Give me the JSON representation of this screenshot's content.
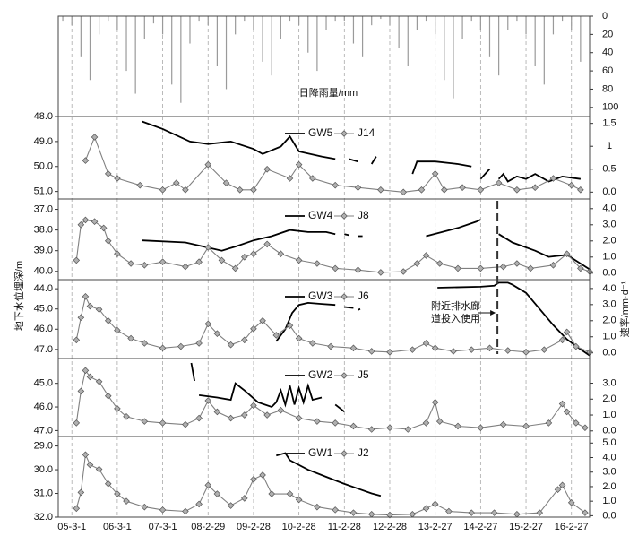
{
  "chart_data": [
    {
      "type": "bar",
      "ylabel": "日降雨量/mm",
      "color": "#9a9a9a",
      "xlim": [
        -0.3,
        11.4
      ],
      "ylim": [
        0,
        110
      ],
      "yticks": [
        0,
        20,
        40,
        60,
        80,
        100
      ],
      "x": [
        -0.2,
        0,
        0.2,
        0.4,
        0.6,
        0.8,
        1,
        1.2,
        1.4,
        1.6,
        1.8,
        2,
        2.2,
        2.4,
        2.6,
        2.8,
        3,
        3.2,
        3.4,
        3.6,
        3.8,
        4,
        4.2,
        4.4,
        4.6,
        4.8,
        5,
        5.2,
        5.4,
        5.6,
        5.8,
        6,
        6.2,
        6.4,
        6.6,
        6.8,
        7,
        7.2,
        7.4,
        7.6,
        7.8,
        8,
        8.2,
        8.4,
        8.6,
        8.8,
        9,
        9.2,
        9.4,
        9.6,
        9.8,
        10,
        10.2,
        10.4,
        10.6,
        10.8,
        11,
        11.2
      ],
      "values": [
        5,
        10,
        45,
        70,
        20,
        5,
        15,
        60,
        85,
        25,
        8,
        20,
        75,
        95,
        30,
        5,
        10,
        55,
        80,
        20,
        5,
        15,
        50,
        65,
        25,
        5,
        10,
        40,
        60,
        15,
        5,
        5,
        30,
        45,
        10,
        3,
        10,
        35,
        55,
        15,
        5,
        20,
        70,
        90,
        25,
        5,
        15,
        45,
        65,
        15,
        5,
        20,
        55,
        75,
        20,
        5,
        15,
        50
      ]
    },
    {
      "type": "line",
      "xlim": [
        -0.3,
        11.4
      ],
      "ylim": [
        48,
        51.3
      ],
      "y2lim": [
        -0.15,
        1.65
      ],
      "yticks": [
        {
          "value": 48,
          "label": "48.0"
        },
        {
          "value": 49,
          "label": "49.0"
        },
        {
          "value": 50,
          "label": "50.0"
        },
        {
          "value": 51,
          "label": "51.0"
        }
      ],
      "y2ticks": [
        {
          "value": 0,
          "label": "0.0"
        },
        0.5,
        1,
        1.5
      ],
      "series": [
        {
          "name": "GW5",
          "color": "#000000",
          "axis": "y",
          "x": [
            1.55,
            2.0,
            2.6,
            3.0,
            3.5,
            4.0,
            4.2,
            4.6,
            4.8,
            5.0,
            5.5,
            5.8,
            5.9,
            6.1,
            6.3,
            6.4,
            6.6,
            6.7,
            7.4,
            7.5,
            7.6,
            8.0,
            8.5,
            8.8,
            8.9,
            9.0,
            9.2,
            9.25,
            9.4,
            9.5,
            9.6,
            9.8,
            10.0,
            10.2,
            10.5,
            10.8,
            11.2
          ],
          "values": [
            48.2,
            48.5,
            49.0,
            49.1,
            49.0,
            49.3,
            49.5,
            49.2,
            48.8,
            49.4,
            49.6,
            49.7,
            null,
            49.7,
            49.8,
            null,
            49.9,
            49.6,
            null,
            50.3,
            49.8,
            49.8,
            49.9,
            50.0,
            null,
            50.5,
            50.1,
            null,
            50.5,
            50.3,
            50.6,
            50.4,
            50.5,
            50.3,
            50.6,
            50.4,
            50.5
          ]
        },
        {
          "name": "J14",
          "color": "#808080",
          "axis": "y2",
          "x": [
            0.3,
            0.5,
            0.8,
            1.0,
            1.5,
            2.0,
            2.3,
            2.5,
            3.0,
            3.4,
            3.7,
            4.0,
            4.3,
            4.8,
            5.0,
            5.3,
            5.8,
            6.3,
            6.8,
            7.3,
            7.7,
            8.0,
            8.2,
            8.6,
            9.0,
            9.4,
            9.8,
            10.2,
            10.6,
            11.0,
            11.2
          ],
          "values": [
            0.69,
            1.2,
            0.4,
            0.3,
            0.15,
            0.05,
            0.2,
            0.05,
            0.6,
            0.2,
            0.05,
            0.05,
            0.5,
            0.3,
            0.6,
            0.3,
            0.15,
            0.1,
            0.05,
            0,
            0.05,
            0.4,
            0.05,
            0.1,
            0.05,
            0.2,
            0.05,
            0.1,
            0.3,
            0.15,
            0.05
          ]
        }
      ]
    },
    {
      "type": "line",
      "xlim": [
        -0.3,
        11.4
      ],
      "ylim": [
        36.5,
        40.4
      ],
      "y2lim": [
        -0.4,
        4.6
      ],
      "yticks": [
        {
          "value": 37,
          "label": "37.0"
        },
        {
          "value": 38,
          "label": "38.0"
        },
        {
          "value": 39,
          "label": "39.0"
        },
        {
          "value": 40,
          "label": "40.0"
        }
      ],
      "y2ticks": [
        {
          "value": 0,
          "label": "0.0"
        },
        {
          "value": 1,
          "label": "1.0"
        },
        {
          "value": 2,
          "label": "2.0"
        },
        {
          "value": 3,
          "label": "3.0"
        },
        {
          "value": 4,
          "label": "4.0"
        }
      ],
      "series": [
        {
          "name": "GW4",
          "color": "#000000",
          "axis": "y",
          "x": [
            1.55,
            2.5,
            3.0,
            3.3,
            3.6,
            4.0,
            4.4,
            4.8,
            5.2,
            5.6,
            5.8,
            5.9,
            6.0,
            6.1,
            6.2,
            6.3,
            6.4,
            7.4,
            7.8,
            8.5,
            8.9,
            9.0,
            9.3,
            9.4,
            9.7,
            10.2,
            10.5,
            10.9,
            11.4
          ],
          "values": [
            38.5,
            38.6,
            38.85,
            39.0,
            38.8,
            38.5,
            38.3,
            38.0,
            38.1,
            38.1,
            38.2,
            null,
            38.2,
            38.25,
            null,
            38.3,
            38.3,
            null,
            38.3,
            37.9,
            37.6,
            37.5,
            null,
            38.2,
            38.6,
            39.0,
            39.3,
            39.2,
            39.9
          ]
        },
        {
          "name": "J8",
          "color": "#808080",
          "axis": "y2",
          "x": [
            0.1,
            0.2,
            0.3,
            0.5,
            0.7,
            0.8,
            1.0,
            1.3,
            1.6,
            2.0,
            2.5,
            2.8,
            3.0,
            3.3,
            3.6,
            3.8,
            4.0,
            4.3,
            4.6,
            5.0,
            5.4,
            5.8,
            6.3,
            6.8,
            7.3,
            7.6,
            7.8,
            8.1,
            8.5,
            9.0,
            9.5,
            9.8,
            10.1,
            10.6,
            10.9,
            11.2,
            11.4
          ],
          "values": [
            0.8,
            3.0,
            3.3,
            3.2,
            2.8,
            2.0,
            1.2,
            0.6,
            0.5,
            0.7,
            0.4,
            0.7,
            1.6,
            0.8,
            0.3,
            1.0,
            1.2,
            1.8,
            1.2,
            0.8,
            0.6,
            0.3,
            0.2,
            0.05,
            0.1,
            0.6,
            1.1,
            0.6,
            0.3,
            0.3,
            0.4,
            0.6,
            0.3,
            0.5,
            1.2,
            0.3,
            0.1
          ]
        }
      ]
    },
    {
      "type": "line",
      "xlim": [
        -0.3,
        11.4
      ],
      "ylim": [
        43.55,
        47.45
      ],
      "y2lim": [
        -0.35,
        4.55
      ],
      "ylabel": "地下水位埋深/m",
      "y2label": "速率/mm·d⁻¹",
      "annotation": {
        "text": [
          "附近排水廊",
          "道投入使用"
        ],
        "x": 9.37
      },
      "yticks": [
        {
          "value": 44,
          "label": "44.0"
        },
        {
          "value": 45,
          "label": "45.0"
        },
        {
          "value": 46,
          "label": "46.0"
        },
        {
          "value": 47,
          "label": "47.0"
        }
      ],
      "y2ticks": [
        {
          "value": 0,
          "label": "0.0"
        },
        {
          "value": 1,
          "label": "1.0"
        },
        {
          "value": 2,
          "label": "2.0"
        },
        {
          "value": 3,
          "label": "3.0"
        },
        {
          "value": 4,
          "label": "4.0"
        }
      ],
      "series": [
        {
          "name": "GW3",
          "color": "#000000",
          "axis": "y",
          "x": [
            4.5,
            4.7,
            4.85,
            5.0,
            5.2,
            5.5,
            5.8,
            5.9,
            6.0,
            6.2,
            6.25,
            6.3,
            6.35,
            7.5,
            8.05,
            9.0,
            9.3,
            9.4,
            9.6,
            9.7,
            10.0,
            10.3,
            10.6,
            10.9,
            11.2,
            11.4
          ],
          "values": [
            46.6,
            46.0,
            45.2,
            44.8,
            44.7,
            44.75,
            44.8,
            null,
            44.9,
            44.95,
            null,
            45.05,
            45.0,
            null,
            43.95,
            43.9,
            43.85,
            43.7,
            43.7,
            43.8,
            44.2,
            45.0,
            45.8,
            46.5,
            47.0,
            47.3
          ]
        },
        {
          "name": "J6",
          "color": "#808080",
          "axis": "y2",
          "x": [
            0.1,
            0.2,
            0.3,
            0.4,
            0.6,
            0.8,
            1.0,
            1.3,
            1.6,
            2.0,
            2.4,
            2.8,
            3.0,
            3.2,
            3.5,
            3.8,
            4.0,
            4.2,
            4.5,
            4.8,
            5.0,
            5.3,
            5.7,
            6.2,
            6.6,
            7.0,
            7.5,
            7.8,
            8.0,
            8.4,
            8.8,
            9.2,
            9.6,
            10.0,
            10.4,
            10.8,
            10.9,
            11.1,
            11.4
          ],
          "values": [
            0.8,
            2.2,
            3.5,
            2.9,
            2.7,
            2.0,
            1.4,
            0.9,
            0.6,
            0.3,
            0.4,
            0.6,
            1.8,
            1.2,
            0.5,
            0.8,
            1.5,
            2.0,
            1.1,
            1.7,
            0.9,
            0.6,
            0.4,
            0.3,
            0.1,
            0.05,
            0.2,
            0.6,
            0.3,
            0.1,
            0.2,
            0.3,
            0.15,
            0.05,
            0.2,
            0.8,
            1.3,
            0.4,
            0.05
          ]
        }
      ]
    },
    {
      "type": "line",
      "xlim": [
        -0.3,
        11.4
      ],
      "ylim": [
        43.95,
        47.25
      ],
      "y2lim": [
        -0.35,
        4.55
      ],
      "yticks": [
        {
          "value": 45,
          "label": "45.0"
        },
        {
          "value": 46,
          "label": "46.0"
        },
        {
          "value": 47,
          "label": "47.0"
        }
      ],
      "y2ticks": [
        {
          "value": 0,
          "label": "0.0"
        },
        {
          "value": 1,
          "label": "1.0"
        },
        {
          "value": 2,
          "label": "2.0"
        },
        {
          "value": 3,
          "label": "3.0"
        }
      ],
      "series": [
        {
          "name": "GW2",
          "color": "#000000",
          "axis": "y",
          "x": [
            2.63,
            2.7,
            2.75,
            2.8,
            3.2,
            3.5,
            3.6,
            3.8,
            4.1,
            4.4,
            4.5,
            4.6,
            4.7,
            4.8,
            4.9,
            5.0,
            5.1,
            5.2,
            5.3,
            5.5,
            5.6,
            5.8,
            6.0
          ],
          "values": [
            44.14,
            44.9,
            null,
            45.5,
            45.6,
            45.7,
            45.0,
            45.3,
            45.8,
            46.0,
            45.8,
            45.3,
            45.9,
            45.1,
            45.9,
            45.2,
            45.8,
            45.1,
            45.7,
            45.6,
            null,
            45.9,
            46.2
          ]
        },
        {
          "name": "J5",
          "color": "#808080",
          "axis": "y2",
          "x": [
            0.1,
            0.2,
            0.3,
            0.4,
            0.6,
            0.8,
            1.0,
            1.2,
            1.6,
            2.0,
            2.5,
            2.8,
            3.0,
            3.2,
            3.5,
            3.8,
            4.0,
            4.3,
            4.6,
            5.0,
            5.4,
            5.8,
            6.2,
            6.6,
            7.0,
            7.4,
            7.8,
            8.0,
            8.1,
            8.5,
            9.0,
            9.5,
            10.0,
            10.5,
            10.8,
            10.9,
            11.1,
            11.3
          ],
          "values": [
            0.5,
            2.5,
            3.8,
            3.4,
            3.1,
            2.2,
            1.4,
            0.9,
            0.6,
            0.5,
            0.4,
            0.8,
            1.9,
            1.2,
            0.8,
            1.0,
            1.6,
            1.0,
            1.3,
            0.8,
            0.6,
            0.5,
            0.3,
            0.1,
            0.2,
            0.1,
            0.5,
            1.8,
            0.6,
            0.3,
            0.2,
            0.4,
            0.3,
            0.5,
            1.7,
            1.2,
            0.5,
            0.2
          ]
        }
      ]
    },
    {
      "type": "line",
      "xlim": [
        -0.3,
        11.4
      ],
      "ylim": [
        28.6,
        32
      ],
      "y2lim": [
        -0.1,
        5.45
      ],
      "xticks": [
        {
          "value": 0,
          "label": "05-3-1"
        },
        {
          "value": 1,
          "label": "06-3-1"
        },
        {
          "value": 2,
          "label": "07-3-1"
        },
        {
          "value": 3,
          "label": "08-2-29"
        },
        {
          "value": 4,
          "label": "09-2-28"
        },
        {
          "value": 5,
          "label": "10-2-28"
        },
        {
          "value": 6,
          "label": "11-2-28"
        },
        {
          "value": 7,
          "label": "12-2-28"
        },
        {
          "value": 8,
          "label": "13-2-27"
        },
        {
          "value": 9,
          "label": "14-2-27"
        },
        {
          "value": 10,
          "label": "15-2-27"
        },
        {
          "value": 11,
          "label": "16-2-27"
        }
      ],
      "yticks": [
        {
          "value": 29,
          "label": "29.0"
        },
        {
          "value": 30,
          "label": "30.0"
        },
        {
          "value": 31,
          "label": "31.0"
        },
        {
          "value": 32,
          "label": "32.0"
        }
      ],
      "y2ticks": [
        {
          "value": 0,
          "label": "0.0"
        },
        {
          "value": 1,
          "label": "1.0"
        },
        {
          "value": 2,
          "label": "2.0"
        },
        {
          "value": 3,
          "label": "3.0"
        },
        {
          "value": 4,
          "label": "4.0"
        },
        {
          "value": 5,
          "label": "5.0"
        }
      ],
      "series": [
        {
          "name": "GW1",
          "color": "#000000",
          "axis": "y",
          "x": [
            4.5,
            4.7,
            4.8,
            5.2,
            5.6,
            6.0,
            6.3,
            6.6,
            6.8
          ],
          "values": [
            29.4,
            29.3,
            29.6,
            30.0,
            30.3,
            30.6,
            30.8,
            31.0,
            31.1
          ]
        },
        {
          "name": "J2",
          "color": "#808080",
          "axis": "y2",
          "x": [
            0.1,
            0.2,
            0.3,
            0.4,
            0.6,
            0.8,
            1.0,
            1.2,
            1.6,
            2.0,
            2.5,
            2.8,
            3.0,
            3.2,
            3.5,
            3.8,
            4.0,
            4.2,
            4.4,
            4.8,
            5.0,
            5.4,
            5.8,
            6.2,
            6.6,
            7.0,
            7.5,
            7.8,
            8.0,
            8.3,
            8.8,
            9.3,
            9.8,
            10.3,
            10.7,
            10.8,
            11.0,
            11.3
          ],
          "values": [
            0.5,
            1.6,
            4.2,
            3.5,
            3.2,
            2.2,
            1.5,
            1.0,
            0.6,
            0.4,
            0.3,
            0.8,
            2.1,
            1.5,
            0.7,
            1.2,
            2.5,
            2.8,
            1.5,
            1.5,
            1.1,
            0.6,
            0.4,
            0.2,
            0.1,
            0.05,
            0.1,
            0.5,
            0.8,
            0.3,
            0.2,
            0.2,
            0.1,
            0.2,
            1.8,
            2.1,
            0.9,
            0.2
          ]
        }
      ]
    }
  ]
}
